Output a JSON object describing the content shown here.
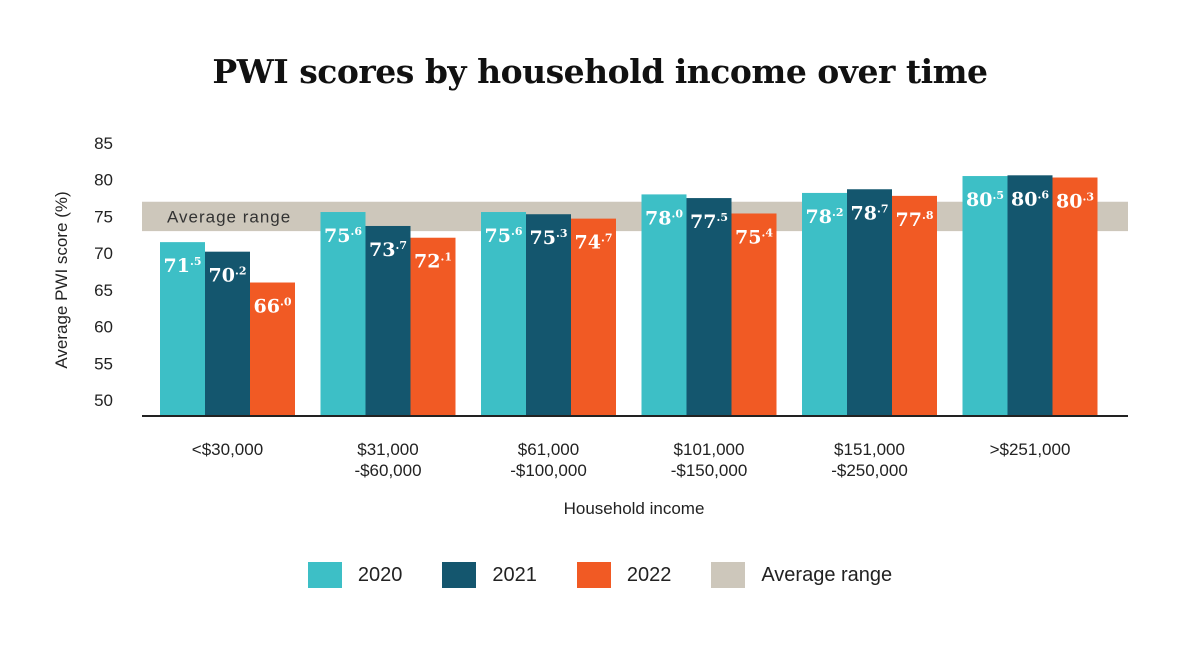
{
  "chart_data": {
    "type": "bar",
    "title": "PWI scores by household income over time",
    "xlabel": "Household income",
    "ylabel": "Average PWI score (%)",
    "ylim": [
      50,
      85
    ],
    "yticks": [
      "50",
      "55",
      "60",
      "65",
      "70",
      "75",
      "80",
      "85"
    ],
    "categories": [
      [
        "<$30,000"
      ],
      [
        "$31,000",
        "-$60,000"
      ],
      [
        "$61,000",
        "-$100,000"
      ],
      [
        "$101,000",
        "-$150,000"
      ],
      [
        "$151,000",
        "-$250,000"
      ],
      [
        ">$251,000"
      ]
    ],
    "series": [
      {
        "name": "2020",
        "color": "#3dbfc6",
        "values": [
          71.5,
          75.6,
          75.6,
          78.0,
          78.2,
          80.5
        ]
      },
      {
        "name": "2021",
        "color": "#14566e",
        "values": [
          70.2,
          73.7,
          75.3,
          77.5,
          78.7,
          80.6
        ]
      },
      {
        "name": "2022",
        "color": "#f15a24",
        "values": [
          66.0,
          72.1,
          74.7,
          75.4,
          77.8,
          80.3
        ]
      }
    ],
    "average_range": {
      "label": "Average range",
      "low": 73,
      "high": 77,
      "color": "#cdc7bb"
    },
    "grid": false,
    "legend_position": "bottom"
  },
  "legend": {
    "items": [
      {
        "label": "2020",
        "color": "#3dbfc6"
      },
      {
        "label": "2021",
        "color": "#14566e"
      },
      {
        "label": "2022",
        "color": "#f15a24"
      },
      {
        "label": "Average range",
        "color": "#cdc7bb"
      }
    ]
  }
}
